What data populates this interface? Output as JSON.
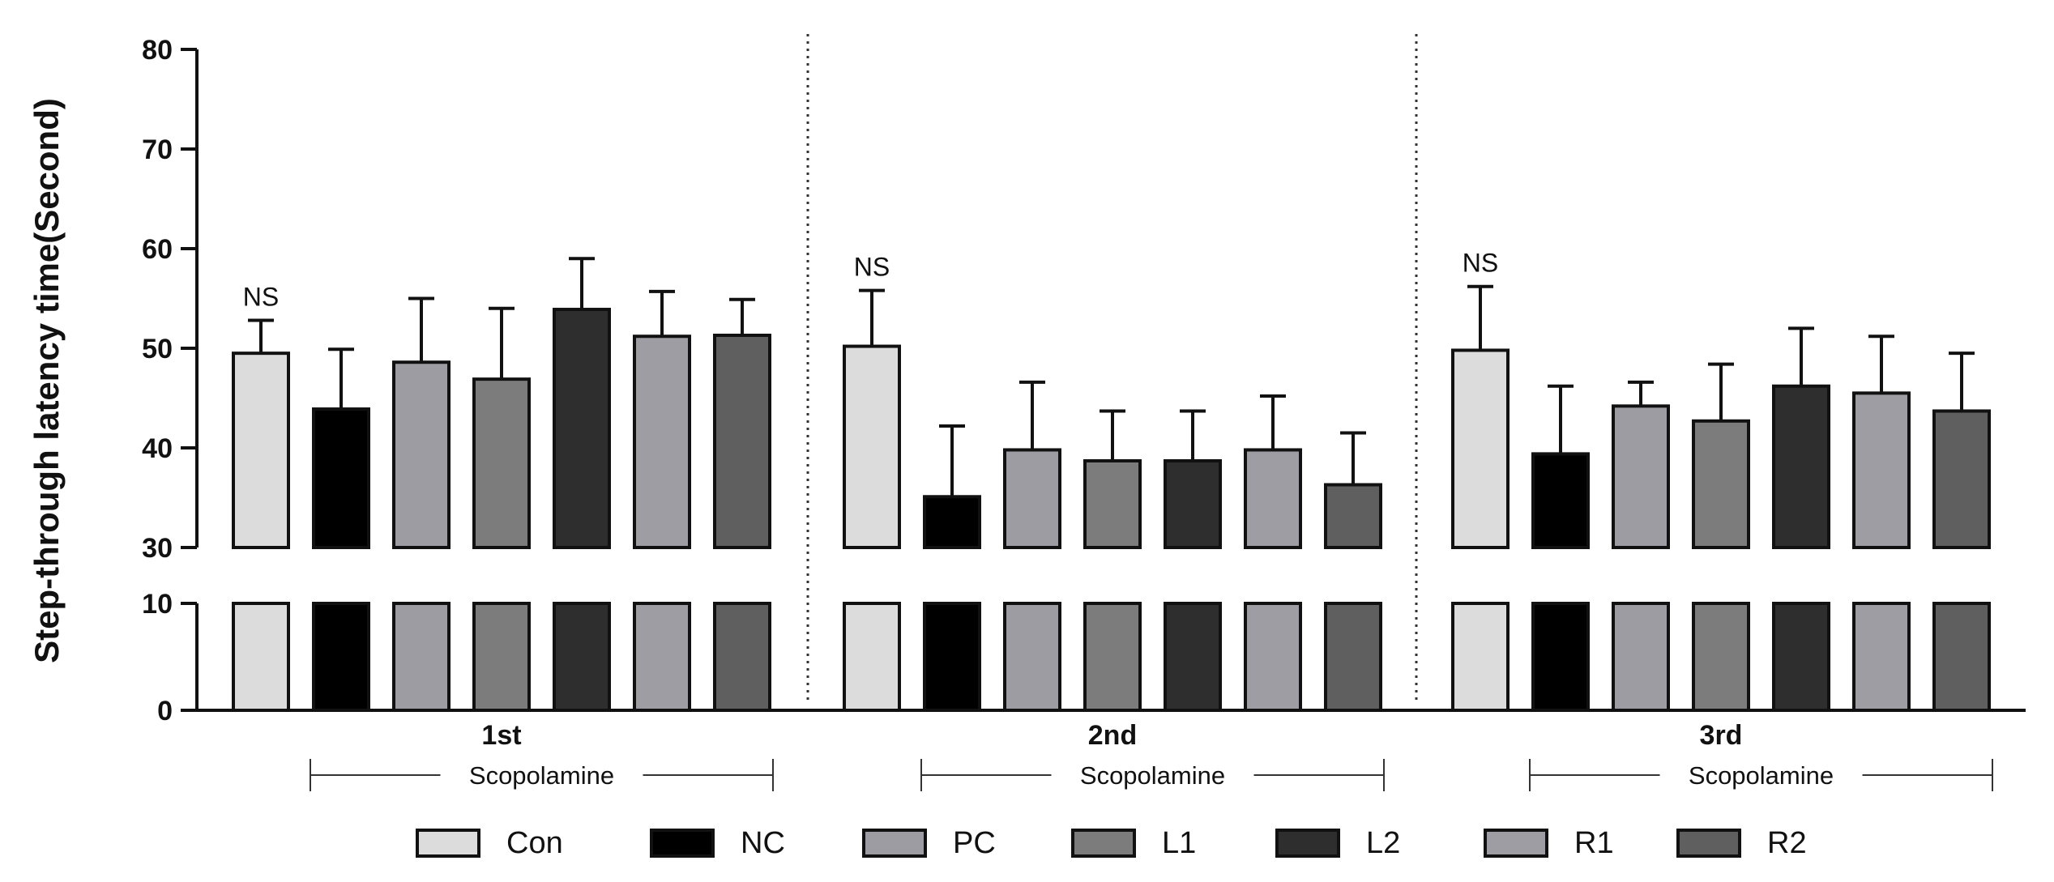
{
  "chart_data": {
    "type": "bar",
    "ylabel": "Step-through latency time(Second)",
    "y_axis_break": {
      "lower": [
        0,
        10
      ],
      "upper": [
        30,
        80
      ]
    },
    "yticks_lower": [
      "0",
      "10"
    ],
    "yticks_upper": [
      "30",
      "40",
      "50",
      "60",
      "70",
      "80"
    ],
    "groups": [
      {
        "label": "1st",
        "annotation": "NS",
        "treatment": "Scopolamine"
      },
      {
        "label": "2nd",
        "annotation": "NS",
        "treatment": "Scopolamine"
      },
      {
        "label": "3rd",
        "annotation": "NS",
        "treatment": "Scopolamine"
      }
    ],
    "series": [
      {
        "name": "Con",
        "color": "#dcdcdc",
        "values": [
          49.5,
          50.2,
          49.8
        ],
        "errors": [
          3.3,
          5.6,
          6.4
        ]
      },
      {
        "name": "NC",
        "color": "#000000",
        "values": [
          43.9,
          35.1,
          39.4
        ],
        "errors": [
          6.0,
          7.1,
          6.8
        ]
      },
      {
        "name": "PC",
        "color": "#9d9ca2",
        "values": [
          48.6,
          39.8,
          44.2
        ],
        "errors": [
          6.4,
          6.8,
          2.4
        ]
      },
      {
        "name": "L1",
        "color": "#7c7c7c",
        "values": [
          46.9,
          38.7,
          42.7
        ],
        "errors": [
          7.1,
          5.0,
          5.7
        ]
      },
      {
        "name": "L2",
        "color": "#2e2e2e",
        "values": [
          53.9,
          38.7,
          46.2
        ],
        "errors": [
          5.1,
          5.0,
          5.8
        ]
      },
      {
        "name": "R1",
        "color": "#9e9da3",
        "values": [
          51.2,
          39.8,
          45.5
        ],
        "errors": [
          4.5,
          5.4,
          5.7
        ]
      },
      {
        "name": "R2",
        "color": "#5f5f5f",
        "values": [
          51.3,
          36.3,
          43.7
        ],
        "errors": [
          3.6,
          5.2,
          5.8
        ]
      }
    ]
  }
}
